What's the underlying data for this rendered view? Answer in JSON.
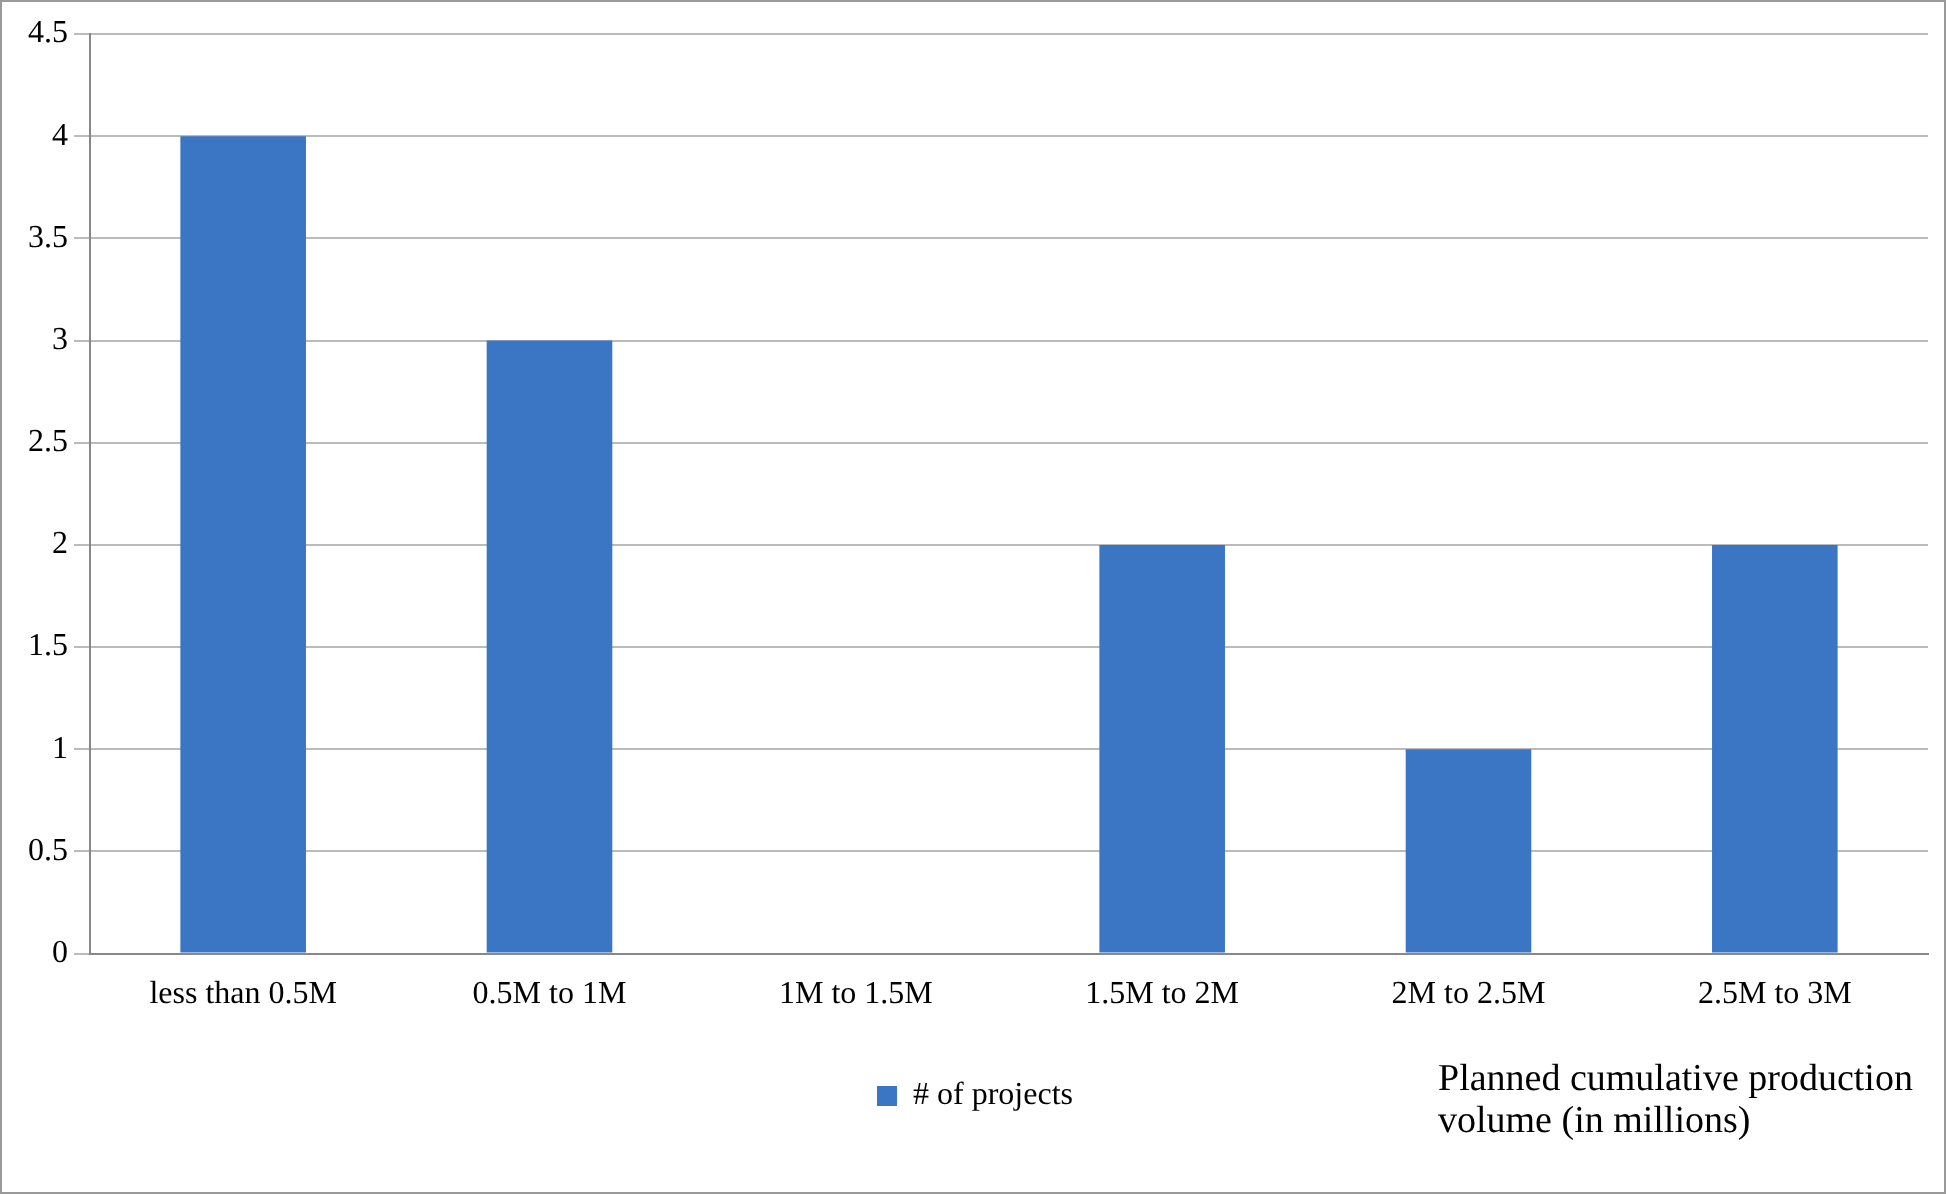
{
  "chart_data": {
    "type": "bar",
    "xlabel": "Planned cumulative production volume (in millions)",
    "categories": [
      "less than 0.5M",
      "0.5M to 1M",
      "1M to 1.5M",
      "1.5M to 2M",
      "2M to 2.5M",
      "2.5M to 3M"
    ],
    "series": [
      {
        "name": "# of projects",
        "color": "#3a76c4",
        "values": [
          4,
          3,
          0,
          2,
          1,
          2
        ]
      }
    ],
    "ylim": [
      0,
      4.5
    ],
    "yticks": [
      0,
      0.5,
      1,
      1.5,
      2,
      2.5,
      3,
      3.5,
      4,
      4.5
    ],
    "grid": "y",
    "legend": "bottom"
  }
}
